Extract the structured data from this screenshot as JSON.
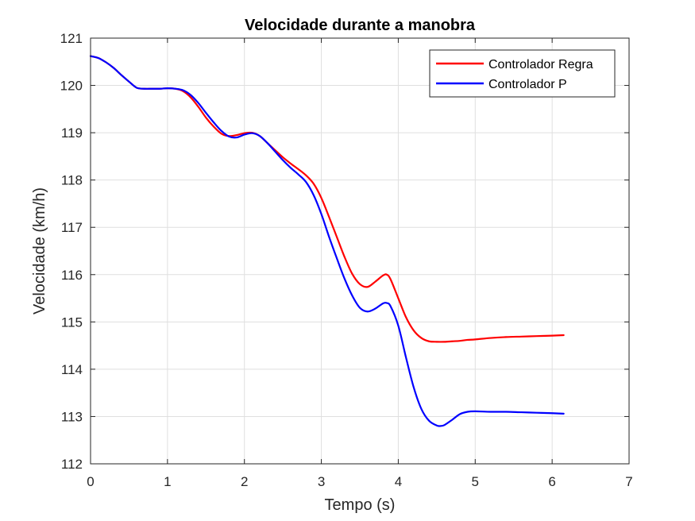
{
  "chart_data": {
    "type": "line",
    "title": "Velocidade durante a manobra",
    "xlabel": "Tempo (s)",
    "ylabel": "Velocidade (km/h)",
    "xlim": [
      0,
      7
    ],
    "ylim": [
      112,
      121
    ],
    "xticks": [
      0,
      1,
      2,
      3,
      4,
      5,
      6,
      7
    ],
    "yticks": [
      112,
      113,
      114,
      115,
      116,
      117,
      118,
      119,
      120,
      121
    ],
    "grid": true,
    "legend_position": "top-right",
    "series": [
      {
        "name": "Controlador Regra",
        "color": "#ff0000",
        "x": [
          0,
          0.1,
          0.2,
          0.3,
          0.4,
          0.5,
          0.6,
          0.7,
          0.8,
          0.9,
          1.0,
          1.1,
          1.2,
          1.3,
          1.4,
          1.5,
          1.6,
          1.7,
          1.8,
          1.9,
          2.0,
          2.1,
          2.2,
          2.3,
          2.4,
          2.5,
          2.6,
          2.7,
          2.8,
          2.9,
          3.0,
          3.1,
          3.2,
          3.3,
          3.4,
          3.5,
          3.6,
          3.7,
          3.8,
          3.85,
          3.9,
          4.0,
          4.1,
          4.2,
          4.3,
          4.4,
          4.5,
          4.6,
          4.7,
          4.8,
          4.9,
          5.0,
          5.2,
          5.4,
          5.6,
          5.8,
          6.0,
          6.15
        ],
        "y": [
          120.62,
          120.58,
          120.49,
          120.37,
          120.22,
          120.08,
          119.95,
          119.93,
          119.93,
          119.93,
          119.94,
          119.93,
          119.88,
          119.75,
          119.55,
          119.32,
          119.13,
          118.98,
          118.93,
          118.95,
          118.99,
          119.0,
          118.93,
          118.78,
          118.63,
          118.48,
          118.35,
          118.23,
          118.1,
          117.92,
          117.62,
          117.22,
          116.8,
          116.38,
          116.02,
          115.8,
          115.74,
          115.85,
          115.98,
          116.0,
          115.9,
          115.5,
          115.1,
          114.82,
          114.66,
          114.59,
          114.58,
          114.58,
          114.59,
          114.6,
          114.62,
          114.63,
          114.66,
          114.68,
          114.69,
          114.7,
          114.71,
          114.72
        ]
      },
      {
        "name": "Controlador P",
        "color": "#0000ff",
        "x": [
          0,
          0.1,
          0.2,
          0.3,
          0.4,
          0.5,
          0.6,
          0.7,
          0.8,
          0.9,
          1.0,
          1.1,
          1.2,
          1.3,
          1.4,
          1.5,
          1.6,
          1.7,
          1.8,
          1.9,
          2.0,
          2.1,
          2.2,
          2.3,
          2.4,
          2.5,
          2.6,
          2.7,
          2.8,
          2.9,
          3.0,
          3.1,
          3.2,
          3.3,
          3.4,
          3.5,
          3.6,
          3.7,
          3.8,
          3.85,
          3.9,
          4.0,
          4.1,
          4.2,
          4.3,
          4.4,
          4.5,
          4.55,
          4.6,
          4.7,
          4.8,
          4.9,
          5.0,
          5.2,
          5.4,
          5.6,
          5.8,
          6.0,
          6.15
        ],
        "y": [
          120.62,
          120.58,
          120.49,
          120.37,
          120.22,
          120.08,
          119.95,
          119.93,
          119.93,
          119.93,
          119.94,
          119.93,
          119.9,
          119.8,
          119.63,
          119.42,
          119.22,
          119.04,
          118.92,
          118.9,
          118.96,
          118.99,
          118.93,
          118.78,
          118.6,
          118.42,
          118.26,
          118.12,
          117.96,
          117.68,
          117.28,
          116.8,
          116.35,
          115.92,
          115.56,
          115.3,
          115.22,
          115.28,
          115.39,
          115.4,
          115.33,
          114.92,
          114.25,
          113.62,
          113.16,
          112.91,
          112.81,
          112.8,
          112.82,
          112.93,
          113.05,
          113.1,
          113.11,
          113.1,
          113.1,
          113.09,
          113.08,
          113.07,
          113.06
        ]
      }
    ]
  }
}
